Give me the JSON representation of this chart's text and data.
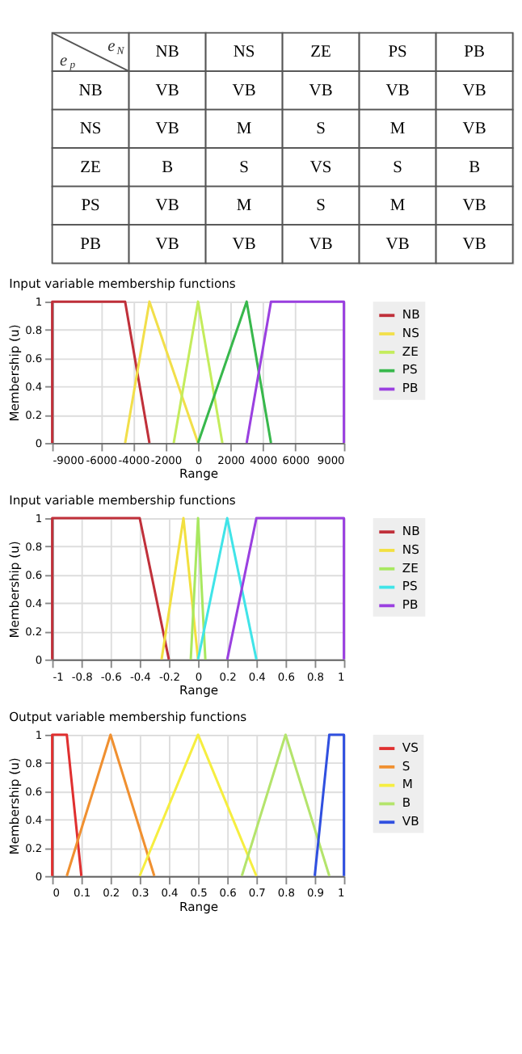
{
  "chart_data": [
    {
      "type": "other",
      "xlabel": "e$_{N}$",
      "ylabel": "e$_{p}$",
      "categories": [
        "NB",
        "NS",
        "ZE",
        "PS",
        "PB"
      ],
      "y_categories": [
        "NB",
        "NS",
        "ZE",
        "PS",
        "PB"
      ],
      "cell_labels": [
        [
          "VB",
          "VB",
          "VB",
          "VB",
          "VB"
        ],
        [
          "VB",
          "M",
          "S",
          "M",
          "VB"
        ],
        [
          "B",
          "S",
          "VS",
          "S",
          "B"
        ],
        [
          "VB",
          "M",
          "S",
          "M",
          "VB"
        ],
        [
          "VB",
          "VB",
          "VB",
          "VB",
          "VB"
        ]
      ]
    },
    {
      "type": "line",
      "title": "Input variable membership functions",
      "xlabel": "Range",
      "ylabel": "Membership (u)",
      "xlim": [
        -9000,
        9000
      ],
      "xticks": [
        -9000,
        -6000,
        -4000,
        -2000,
        0,
        2000,
        4000,
        6000,
        9000
      ],
      "ylim": [
        0,
        1
      ],
      "yticks": [
        0,
        0.2,
        0.4,
        0.6,
        0.8,
        1
      ],
      "grid": true,
      "legend": "right",
      "marker": "none",
      "line_style": "solid",
      "series": [
        {
          "name": "NB",
          "color": "#c0303a",
          "x": [
            -9000,
            -9000,
            -4500,
            -3000
          ],
          "values": [
            0,
            1,
            1,
            0
          ]
        },
        {
          "name": "NS",
          "color": "#f2df4a",
          "x": [
            -4500,
            -3000,
            0
          ],
          "values": [
            0,
            1,
            0
          ]
        },
        {
          "name": "ZE",
          "color": "#c4ec5c",
          "x": [
            -1500,
            0,
            1500
          ],
          "values": [
            0,
            1,
            0
          ]
        },
        {
          "name": "PS",
          "color": "#38b84c",
          "x": [
            0,
            3000,
            4500
          ],
          "values": [
            0,
            1,
            0
          ]
        },
        {
          "name": "PB",
          "color": "#9a40e0",
          "x": [
            3000,
            4500,
            9000,
            9000
          ],
          "values": [
            0,
            1,
            1,
            0
          ]
        }
      ]
    },
    {
      "type": "line",
      "title": "Input variable membership functions",
      "xlabel": "Range",
      "ylabel": "Membership (u)",
      "xlim": [
        -1,
        1
      ],
      "xticks": [
        -1,
        -0.8,
        -0.6,
        -0.4,
        -0.2,
        0,
        0.2,
        0.4,
        0.6,
        0.8,
        1
      ],
      "ylim": [
        0,
        1
      ],
      "yticks": [
        0,
        0.2,
        0.4,
        0.6,
        0.8,
        1
      ],
      "grid": true,
      "legend": "right",
      "marker": "none",
      "line_style": "solid",
      "series": [
        {
          "name": "NB",
          "color": "#c0303a",
          "x": [
            -1,
            -1,
            -0.4,
            -0.2
          ],
          "values": [
            0,
            1,
            1,
            0
          ]
        },
        {
          "name": "NS",
          "color": "#f2e040",
          "x": [
            -0.25,
            -0.1,
            0
          ],
          "values": [
            0,
            1,
            0
          ]
        },
        {
          "name": "ZE",
          "color": "#a8e860",
          "x": [
            -0.05,
            0,
            0.05
          ],
          "values": [
            0,
            1,
            0
          ]
        },
        {
          "name": "PS",
          "color": "#40e4e8",
          "x": [
            0,
            0.2,
            0.4
          ],
          "values": [
            0,
            1,
            0
          ]
        },
        {
          "name": "PB",
          "color": "#9a40e0",
          "x": [
            0.2,
            0.4,
            1,
            1
          ],
          "values": [
            0,
            1,
            1,
            0
          ]
        }
      ]
    },
    {
      "type": "line",
      "title": "Output variable membership functions",
      "xlabel": "Range",
      "ylabel": "Membership (u)",
      "xlim": [
        0,
        1
      ],
      "xticks": [
        0,
        0.1,
        0.2,
        0.3,
        0.4,
        0.5,
        0.6,
        0.7,
        0.8,
        0.9,
        1
      ],
      "ylim": [
        0,
        1
      ],
      "yticks": [
        0,
        0.2,
        0.4,
        0.6,
        0.8,
        1
      ],
      "grid": true,
      "legend": "right",
      "marker": "none",
      "line_style": "solid",
      "series": [
        {
          "name": "VS",
          "color": "#e03030",
          "x": [
            0,
            0,
            0.05,
            0.1
          ],
          "values": [
            0,
            1,
            1,
            0
          ]
        },
        {
          "name": "S",
          "color": "#f09030",
          "x": [
            0.05,
            0.2,
            0.35
          ],
          "values": [
            0,
            1,
            0
          ]
        },
        {
          "name": "M",
          "color": "#f6ee40",
          "x": [
            0.3,
            0.5,
            0.7
          ],
          "values": [
            0,
            1,
            0
          ]
        },
        {
          "name": "B",
          "color": "#b4e46c",
          "x": [
            0.65,
            0.8,
            0.95
          ],
          "values": [
            0,
            1,
            0
          ]
        },
        {
          "name": "VB",
          "color": "#3050e0",
          "x": [
            0.9,
            0.95,
            1,
            1
          ],
          "values": [
            0,
            1,
            1,
            0
          ]
        }
      ]
    }
  ]
}
